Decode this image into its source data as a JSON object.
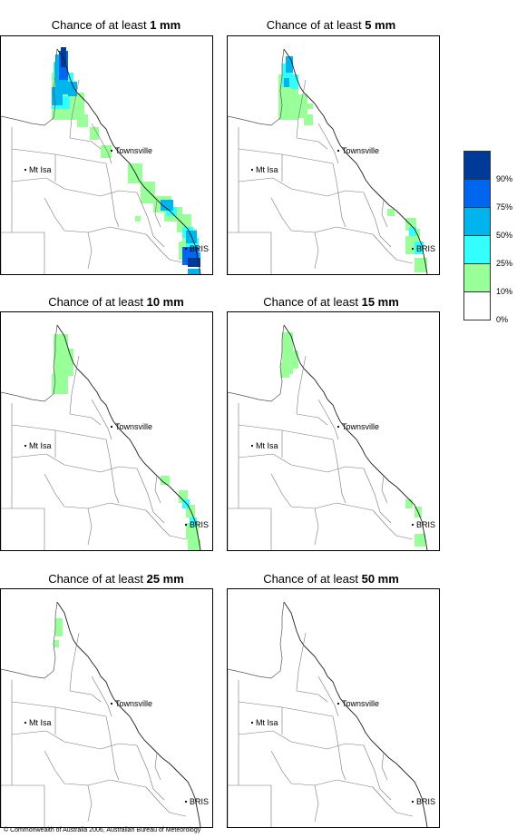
{
  "panels": [
    {
      "title_prefix": "Chance of at least",
      "amount": "1 mm",
      "key": "p1"
    },
    {
      "title_prefix": "Chance of at least",
      "amount": "5 mm",
      "key": "p5"
    },
    {
      "title_prefix": "Chance of at least",
      "amount": "10 mm",
      "key": "p10"
    },
    {
      "title_prefix": "Chance of at least",
      "amount": "15 mm",
      "key": "p15"
    },
    {
      "title_prefix": "Chance of at least",
      "amount": "25 mm",
      "key": "p25"
    },
    {
      "title_prefix": "Chance of at least",
      "amount": "50 mm",
      "key": "p50"
    }
  ],
  "places": {
    "townsville": "Townsville",
    "mt_isa": "Mt Isa",
    "bris": "BRIS"
  },
  "legend": {
    "labels": [
      "90%",
      "75%",
      "50%",
      "25%",
      "10%",
      "0%"
    ],
    "colors": {
      "over90": "#003a99",
      "p75_90": "#0066ee",
      "p50_75": "#00b4ee",
      "p25_50": "#33ffff",
      "p10_25": "#99ff99",
      "p0_10": "#ffffff"
    }
  },
  "copyright": "© Commonwealth of Australia 2006, Australian Bureau of Meteorology"
}
